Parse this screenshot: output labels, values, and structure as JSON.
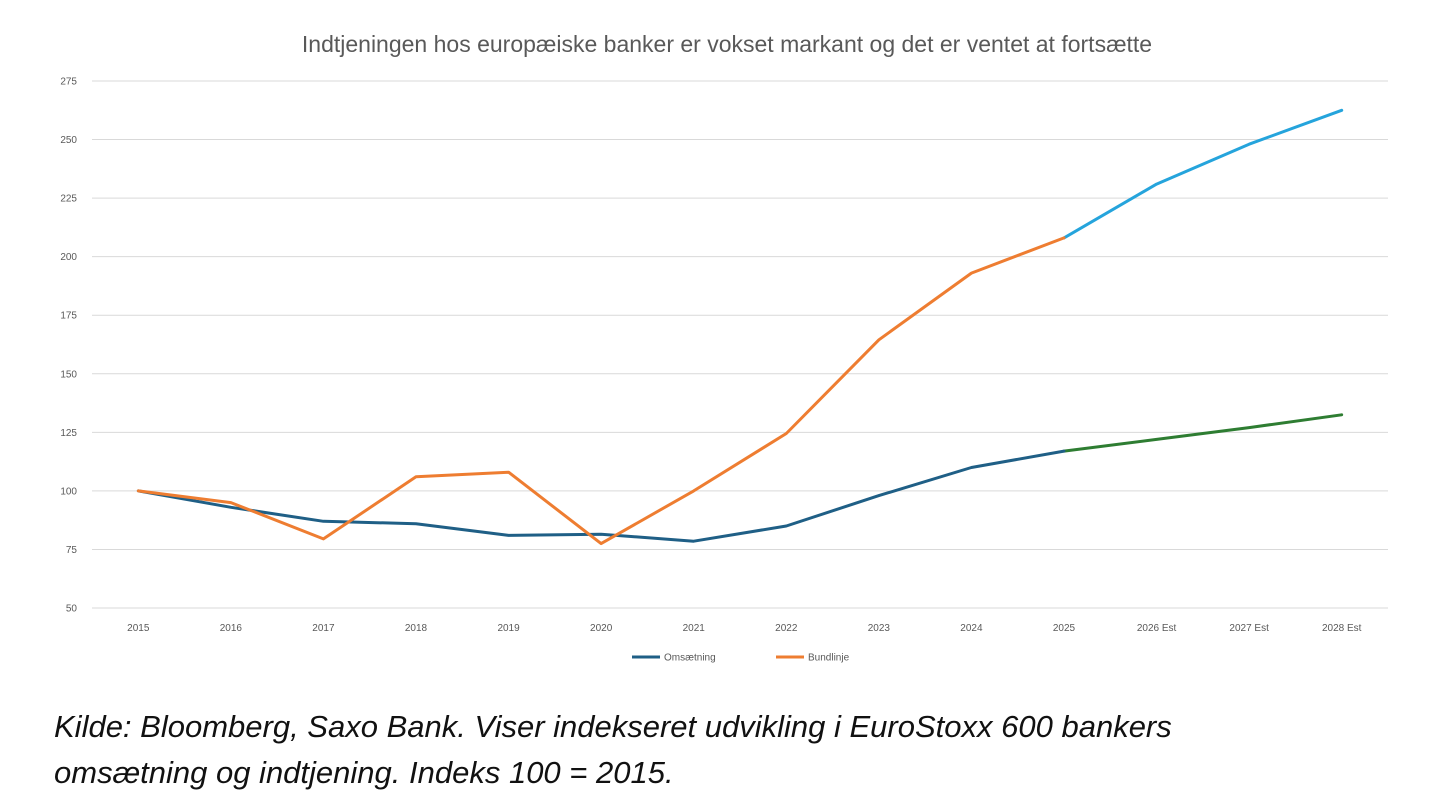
{
  "chart_data": {
    "type": "line",
    "title": "Indtjeningen hos europæiske banker er vokset markant og det er ventet at fortsætte",
    "categories": [
      "2015",
      "2016",
      "2017",
      "2018",
      "2019",
      "2020",
      "2021",
      "2022",
      "2023",
      "2024",
      "2025",
      "2026 Est",
      "2027 Est",
      "2028 Est"
    ],
    "ylim": [
      50,
      275
    ],
    "yticks": [
      50,
      75,
      100,
      125,
      150,
      175,
      200,
      225,
      250,
      275
    ],
    "grid": true,
    "legend_position": "bottom",
    "series": [
      {
        "name": "Omsætning",
        "color": "#1f5f86",
        "values": [
          100,
          93,
          87,
          86,
          81,
          81.5,
          78.5,
          85,
          98,
          110,
          117,
          null,
          null,
          null
        ]
      },
      {
        "name": "Bundlinje",
        "color": "#ee7d31",
        "values": [
          100,
          95,
          79.5,
          106,
          108,
          77.5,
          100,
          124.5,
          164.5,
          193,
          208,
          null,
          null,
          null
        ]
      }
    ],
    "forecast_segments": [
      {
        "continues": "Omsætning",
        "color": "#2e7d32",
        "values": [
          null,
          null,
          null,
          null,
          null,
          null,
          null,
          null,
          null,
          null,
          117,
          122,
          127,
          132.5
        ]
      },
      {
        "continues": "Bundlinje",
        "color": "#25a4dc",
        "values": [
          null,
          null,
          null,
          null,
          null,
          null,
          null,
          null,
          null,
          null,
          208,
          231,
          248,
          262.5
        ]
      }
    ]
  },
  "caption": {
    "line1": "Kilde: Bloomberg, Saxo Bank. Viser indekseret udvikling i EuroStoxx 600 bankers",
    "line2": "omsætning og indtjening. Indeks 100 = 2015."
  }
}
